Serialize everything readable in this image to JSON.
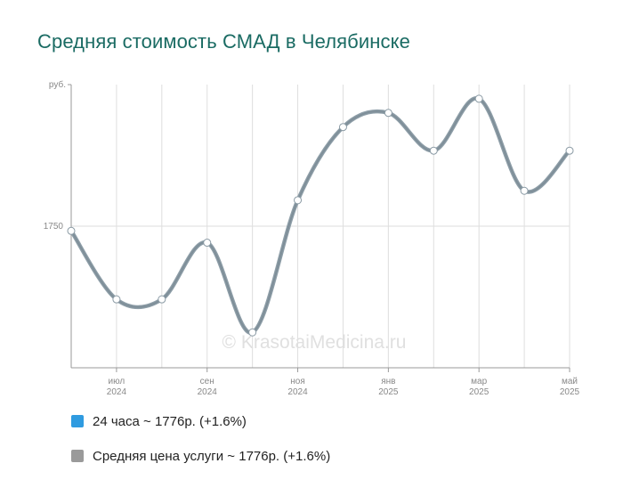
{
  "title": "Средняя стоимость СМАД в Челябинске",
  "watermark": "© KrasotaiMedicina.ru",
  "legend": [
    {
      "label": "24 часа ~ 1776р. (+1.6%)",
      "color": "#2f9be0"
    },
    {
      "label": "Средняя цена услуги ~ 1776р. (+1.6%)",
      "color": "#9a9a9a"
    }
  ],
  "chart_data": {
    "type": "line",
    "ylabel": "руб.",
    "yticks": [
      "1750"
    ],
    "ylim": [
      1690,
      1810
    ],
    "x_ticks": [
      {
        "month": "июл",
        "year": "2024"
      },
      {
        "month": "сен",
        "year": "2024"
      },
      {
        "month": "ноя",
        "year": "2024"
      },
      {
        "month": "янв",
        "year": "2025"
      },
      {
        "month": "мар",
        "year": "2025"
      },
      {
        "month": "май",
        "year": "2025"
      }
    ],
    "grid": true,
    "line_color": "#8e9ea8",
    "series": [
      {
        "name": "24 часа",
        "values": [
          1748,
          1719,
          1719,
          1743,
          1705,
          1761,
          1792,
          1798,
          1782,
          1804,
          1765,
          1782
        ]
      },
      {
        "name": "Средняя цена услуги",
        "values": [
          1748,
          1719,
          1719,
          1743,
          1705,
          1761,
          1792,
          1798,
          1782,
          1804,
          1765,
          1782
        ]
      }
    ]
  }
}
